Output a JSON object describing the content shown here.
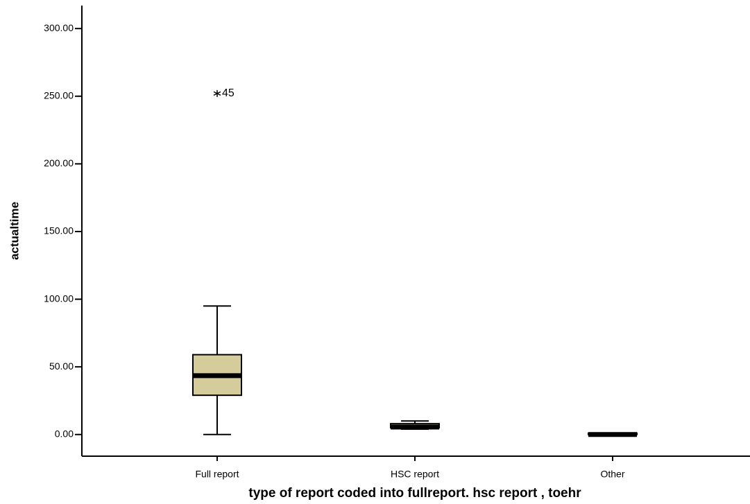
{
  "chart_data": {
    "type": "box",
    "x_label": "type of report coded into fullreport. hsc report , toehr",
    "y_label": "actualtime",
    "categories": [
      "Full report",
      "HSC report",
      "Other"
    ],
    "min": [
      0,
      4,
      0
    ],
    "q1": [
      29,
      5,
      0
    ],
    "median": [
      43.5,
      5.5,
      0
    ],
    "q3": [
      59,
      8,
      1
    ],
    "max": [
      95,
      10,
      1
    ],
    "outliers": [
      [
        {
          "value": 252,
          "label": "45"
        }
      ],
      [],
      []
    ],
    "color": "#d4cd9b",
    "ylim": [
      -16,
      317
    ],
    "yticks": [
      {
        "value": 0,
        "label": "0.00"
      },
      {
        "value": 50,
        "label": "50.00"
      },
      {
        "value": 100,
        "label": "100.00"
      },
      {
        "value": 150,
        "label": "150.00"
      },
      {
        "value": 200,
        "label": "200.00"
      },
      {
        "value": 250,
        "label": "250.00"
      },
      {
        "value": 300,
        "label": "300.00"
      }
    ]
  }
}
